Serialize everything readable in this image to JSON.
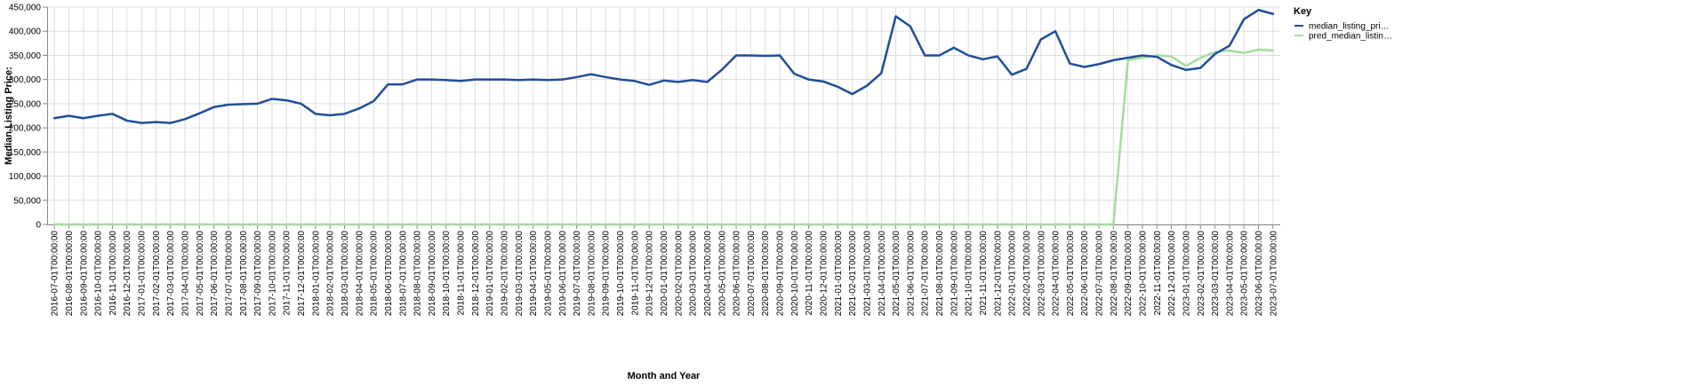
{
  "chart_data": {
    "type": "line",
    "xlabel": "Month and Year",
    "ylabel": "Median Listing Price:",
    "ylim": [
      0,
      450000
    ],
    "yticks": [
      0,
      50000,
      100000,
      150000,
      200000,
      250000,
      300000,
      350000,
      400000,
      450000
    ],
    "ytick_labels": [
      "0",
      "50,000",
      "100,000",
      "150,000",
      "200,000",
      "250,000",
      "300,000",
      "350,000",
      "400,000",
      "450,000"
    ],
    "grid": true,
    "legend": {
      "title": "Key",
      "position": "top-right",
      "entries": [
        "median_listing_pri…",
        "pred_median_listin…"
      ]
    },
    "x": [
      "2016-07-01T00:00:00",
      "2016-08-01T00:00:00",
      "2016-09-01T00:00:00",
      "2016-10-01T00:00:00",
      "2016-11-01T00:00:00",
      "2016-12-01T00:00:00",
      "2017-01-01T00:00:00",
      "2017-02-01T00:00:00",
      "2017-03-01T00:00:00",
      "2017-04-01T00:00:00",
      "2017-05-01T00:00:00",
      "2017-06-01T00:00:00",
      "2017-07-01T00:00:00",
      "2017-08-01T00:00:00",
      "2017-09-01T00:00:00",
      "2017-10-01T00:00:00",
      "2017-11-01T00:00:00",
      "2017-12-01T00:00:00",
      "2018-01-01T00:00:00",
      "2018-02-01T00:00:00",
      "2018-03-01T00:00:00",
      "2018-04-01T00:00:00",
      "2018-05-01T00:00:00",
      "2018-06-01T00:00:00",
      "2018-07-01T00:00:00",
      "2018-08-01T00:00:00",
      "2018-09-01T00:00:00",
      "2018-10-01T00:00:00",
      "2018-11-01T00:00:00",
      "2018-12-01T00:00:00",
      "2019-01-01T00:00:00",
      "2019-02-01T00:00:00",
      "2019-03-01T00:00:00",
      "2019-04-01T00:00:00",
      "2019-05-01T00:00:00",
      "2019-06-01T00:00:00",
      "2019-07-01T00:00:00",
      "2019-08-01T00:00:00",
      "2019-09-01T00:00:00",
      "2019-10-01T00:00:00",
      "2019-11-01T00:00:00",
      "2019-12-01T00:00:00",
      "2020-01-01T00:00:00",
      "2020-02-01T00:00:00",
      "2020-03-01T00:00:00",
      "2020-04-01T00:00:00",
      "2020-05-01T00:00:00",
      "2020-06-01T00:00:00",
      "2020-07-01T00:00:00",
      "2020-08-01T00:00:00",
      "2020-09-01T00:00:00",
      "2020-10-01T00:00:00",
      "2020-11-01T00:00:00",
      "2020-12-01T00:00:00",
      "2021-01-01T00:00:00",
      "2021-02-01T00:00:00",
      "2021-03-01T00:00:00",
      "2021-04-01T00:00:00",
      "2021-05-01T00:00:00",
      "2021-06-01T00:00:00",
      "2021-07-01T00:00:00",
      "2021-08-01T00:00:00",
      "2021-09-01T00:00:00",
      "2021-10-01T00:00:00",
      "2021-11-01T00:00:00",
      "2021-12-01T00:00:00",
      "2022-01-01T00:00:00",
      "2022-02-01T00:00:00",
      "2022-03-01T00:00:00",
      "2022-04-01T00:00:00",
      "2022-05-01T00:00:00",
      "2022-06-01T00:00:00",
      "2022-07-01T00:00:00",
      "2022-08-01T00:00:00",
      "2022-09-01T00:00:00",
      "2022-10-01T00:00:00",
      "2022-11-01T00:00:00",
      "2022-12-01T00:00:00",
      "2023-01-01T00:00:00",
      "2023-02-01T00:00:00",
      "2023-03-01T00:00:00",
      "2023-04-01T00:00:00",
      "2023-05-01T00:00:00",
      "2023-06-01T00:00:00",
      "2023-07-01T00:00:00"
    ],
    "series": [
      {
        "name": "median_listing_pri…",
        "color": "#1f4e9a",
        "values": [
          220000,
          225000,
          220000,
          225000,
          229000,
          215000,
          210000,
          212000,
          210000,
          218000,
          230000,
          243000,
          248000,
          249000,
          250000,
          260000,
          257000,
          250000,
          229000,
          226000,
          229000,
          240000,
          255000,
          290000,
          290000,
          300000,
          300000,
          299000,
          297000,
          300000,
          300000,
          300000,
          299000,
          300000,
          299000,
          300000,
          305000,
          311000,
          305000,
          300000,
          297000,
          289000,
          298000,
          295000,
          299000,
          295000,
          320000,
          350000,
          350000,
          349000,
          350000,
          312000,
          300000,
          296000,
          285000,
          270000,
          287000,
          313000,
          431000,
          410000,
          350000,
          350000,
          366000,
          350000,
          342000,
          348000,
          310000,
          322000,
          383000,
          400000,
          333000,
          326000,
          332000,
          340000,
          345000,
          350000,
          347000,
          330000,
          320000,
          324000,
          353000,
          370000,
          425000,
          444000,
          436000
        ]
      },
      {
        "name": "pred_median_listin…",
        "color": "#a4dc9c",
        "values": [
          0,
          0,
          0,
          0,
          0,
          0,
          0,
          0,
          0,
          0,
          0,
          0,
          0,
          0,
          0,
          0,
          0,
          0,
          0,
          0,
          0,
          0,
          0,
          0,
          0,
          0,
          0,
          0,
          0,
          0,
          0,
          0,
          0,
          0,
          0,
          0,
          0,
          0,
          0,
          0,
          0,
          0,
          0,
          0,
          0,
          0,
          0,
          0,
          0,
          0,
          0,
          0,
          0,
          0,
          0,
          0,
          0,
          0,
          0,
          0,
          0,
          0,
          0,
          0,
          0,
          0,
          0,
          0,
          0,
          0,
          0,
          0,
          0,
          0,
          340000,
          345000,
          350000,
          348000,
          328000,
          345000,
          357000,
          360000,
          355000,
          362000,
          360000
        ]
      }
    ]
  }
}
